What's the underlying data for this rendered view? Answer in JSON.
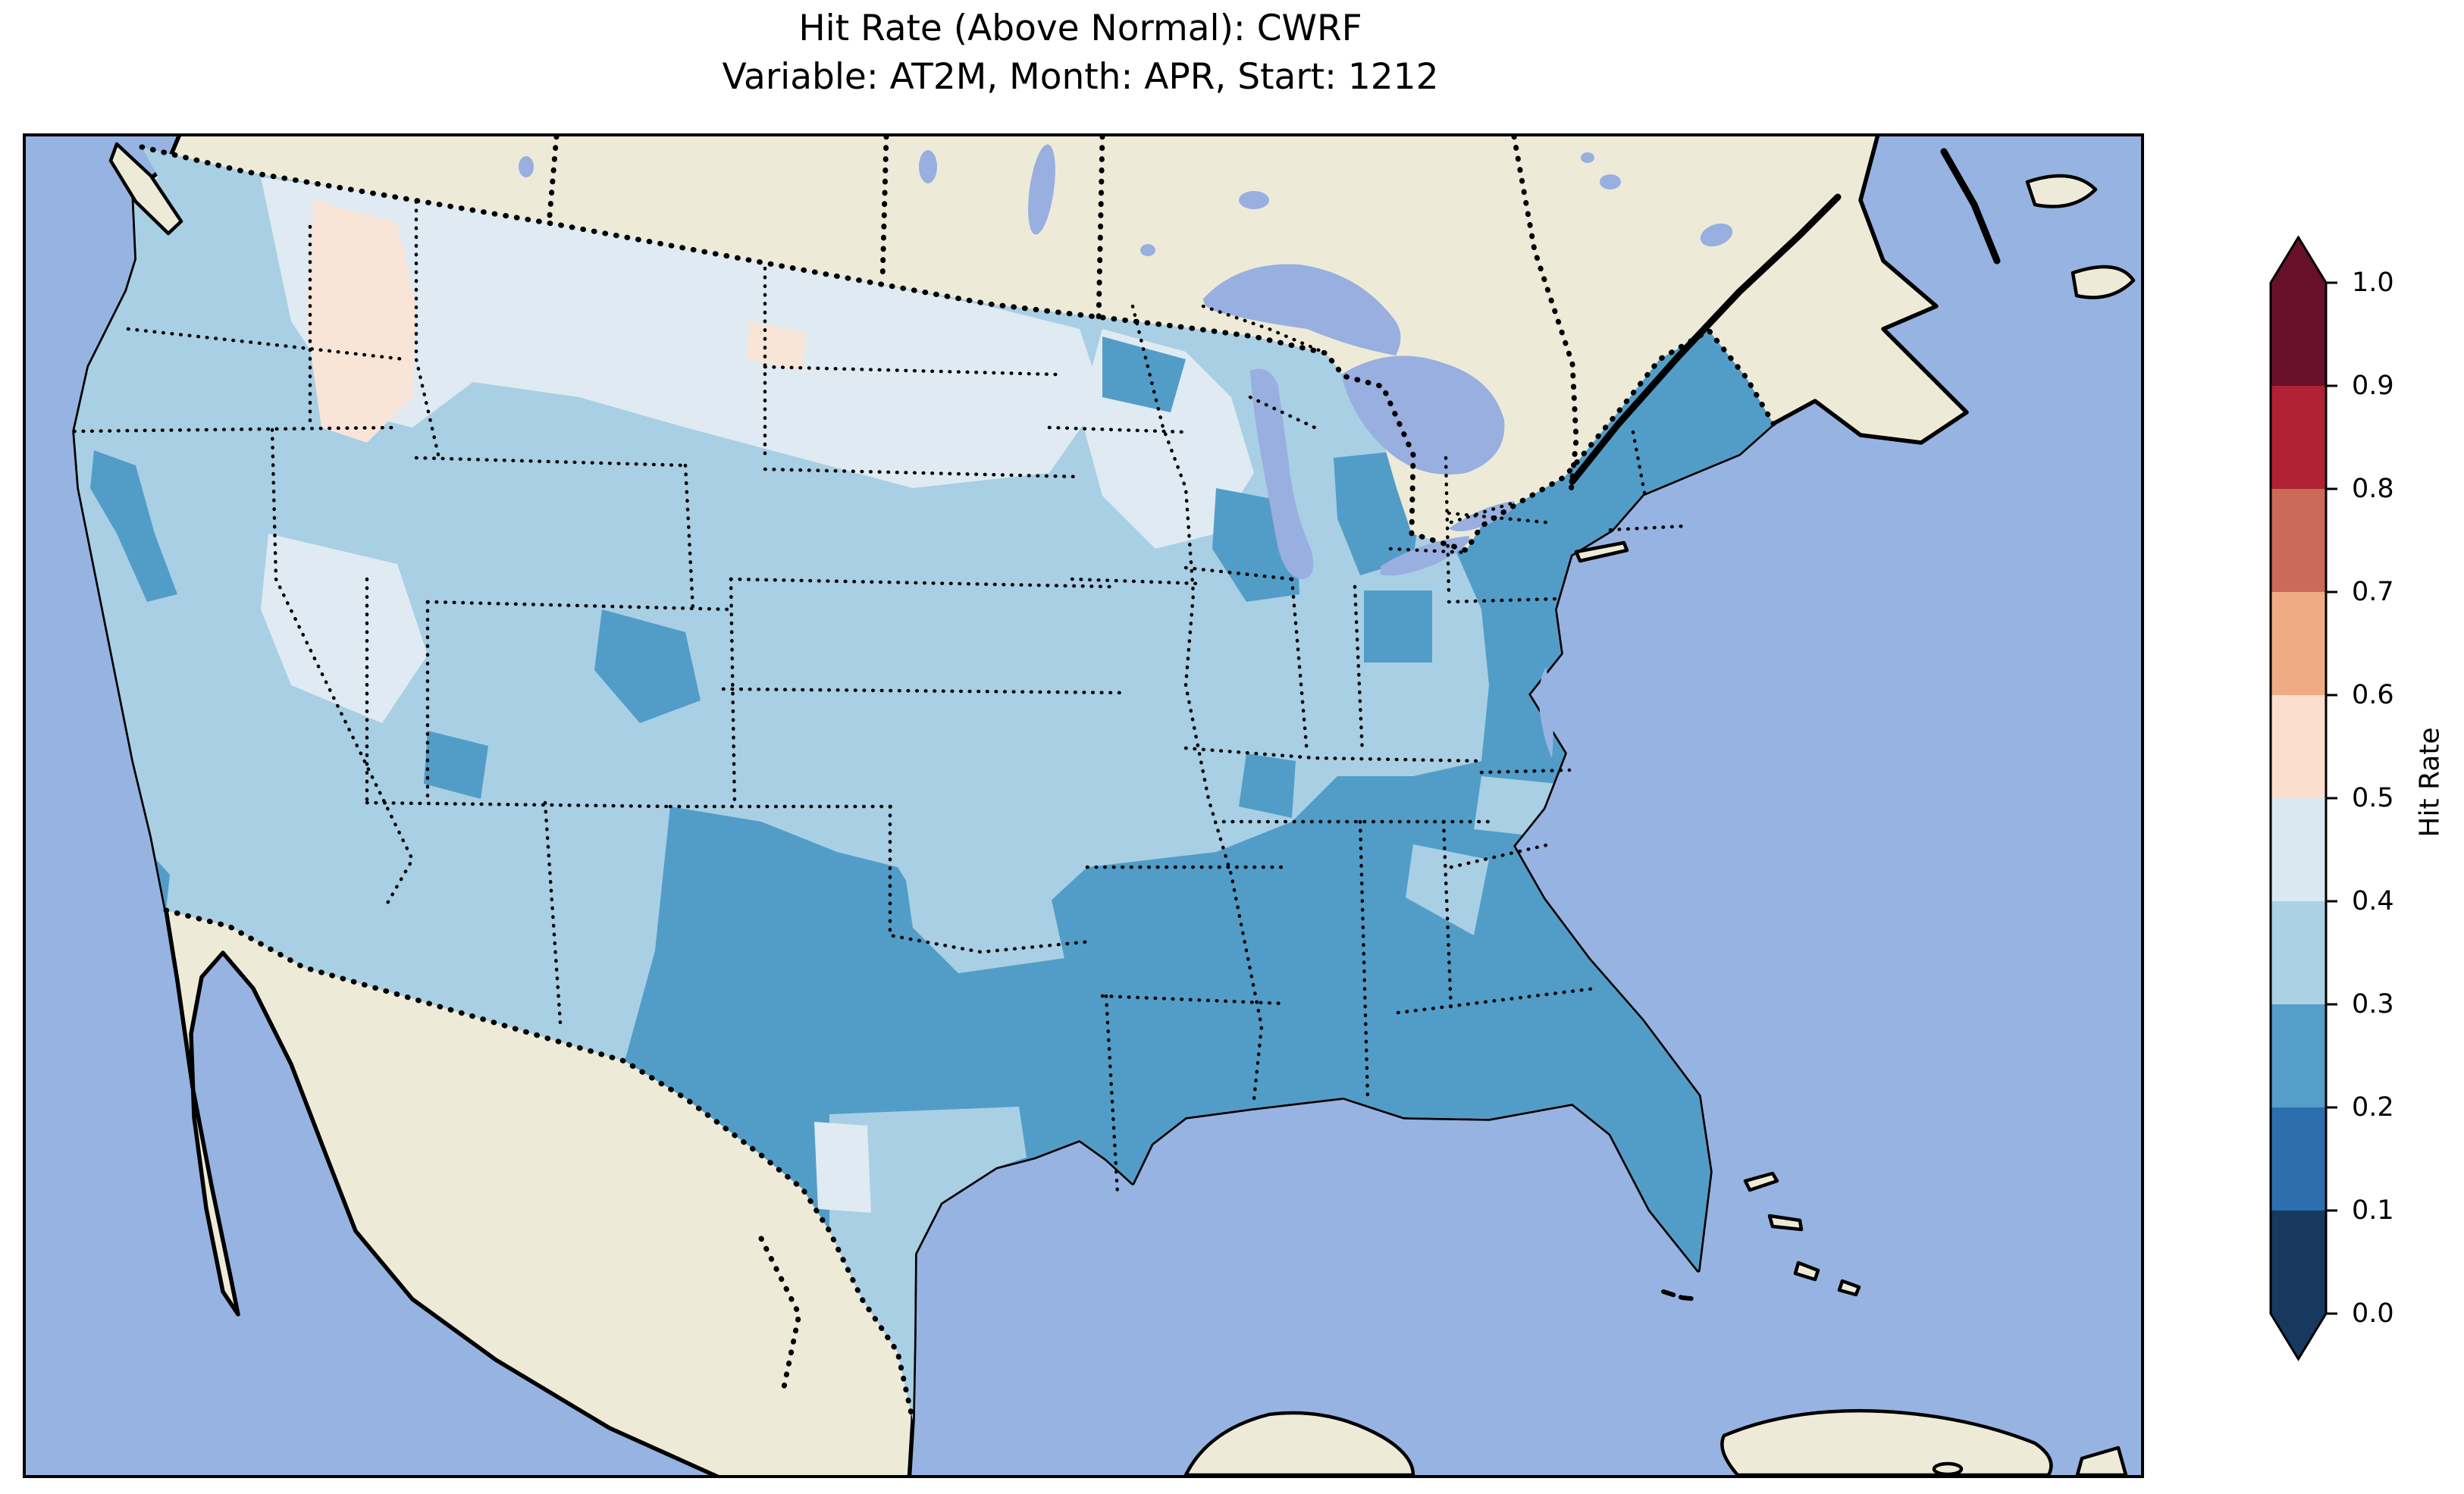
{
  "figure": {
    "title": "Hit Rate (Above Normal): CWRF",
    "subtitle": "Variable: AT2M, Month: APR, Start: 1212"
  },
  "colorbar": {
    "label": "Hit Rate",
    "extend": "both",
    "tick_labels": [
      "1.0",
      "0.9",
      "0.8",
      "0.7",
      "0.6",
      "0.5",
      "0.4",
      "0.3",
      "0.2",
      "0.1",
      "0.0"
    ],
    "levels_top_to_bottom": [
      {
        "range": "0.9–1.0",
        "color": "#68102a"
      },
      {
        "range": "0.8–0.9",
        "color": "#b02133"
      },
      {
        "range": "0.7–0.8",
        "color": "#cb6a58"
      },
      {
        "range": "0.6–0.7",
        "color": "#f1ab84"
      },
      {
        "range": "0.5–0.6",
        "color": "#fbdecd"
      },
      {
        "range": "0.4–0.5",
        "color": "#d9e8f1"
      },
      {
        "range": "0.3–0.4",
        "color": "#abd1e5"
      },
      {
        "range": "0.2–0.3",
        "color": "#549ec9"
      },
      {
        "range": "0.1–0.2",
        "color": "#2d6eae"
      },
      {
        "range": "0.0–0.1",
        "color": "#17395f"
      }
    ]
  },
  "map": {
    "colors": {
      "ocean": "#97b3e1",
      "land": "#edebd8",
      "lake": "#99afe0",
      "bin02": "#529dc8",
      "bin03": "#a8cfe4",
      "bin04": "#dfeaf2",
      "bin05": "#f9e4d8"
    },
    "features": [
      "coastlines (solid)",
      "national borders (bold dotted)",
      "US state borders (dotted)",
      "Great Lakes",
      "Gulf of Mexico",
      "Caribbean islands"
    ]
  },
  "chart_data": {
    "type": "heatmap",
    "title": "Hit Rate (Above Normal): CWRF",
    "subtitle": "Variable: AT2M, Month: APR, Start: 1212",
    "model": "CWRF",
    "metric": "Hit Rate (Above Normal)",
    "variable": "AT2M",
    "month": "APR",
    "start": "1212",
    "colorbar_label": "Hit Rate",
    "value_range": [
      0.0,
      1.0
    ],
    "bin_width": 0.1,
    "scale_ticks": [
      0.0,
      0.1,
      0.2,
      0.3,
      0.4,
      0.5,
      0.6,
      0.7,
      0.8,
      0.9,
      1.0
    ],
    "colormap": "RdBu_r, 10 discrete bins, extend both",
    "domain": "Contiguous United States (gridded ~0.5° cells)",
    "region_values_estimated": [
      {
        "region": "Pacific Northwest (WA/OR) and most of California",
        "hit_rate": "0.3–0.4"
      },
      {
        "region": "Northern California / San Diego coastal cells",
        "hit_rate": "0.2–0.3"
      },
      {
        "region": "Idaho / western Montana patch",
        "hit_rate": "0.5–0.6"
      },
      {
        "region": "Small cell eastern Montana–North Dakota border",
        "hit_rate": "0.5–0.6"
      },
      {
        "region": "Northern Plains (MT, ND, SD, western MN, WI)",
        "hit_rate": "0.4–0.5"
      },
      {
        "region": "Great Basin (NV/UT)",
        "hit_rate": "0.4–0.5"
      },
      {
        "region": "Central Plains and Midwest (KS, NE, IA, MO, IL)",
        "hit_rate": "0.3–0.4"
      },
      {
        "region": "Ohio Valley corridor (IN, OH, KY, WV) – with dark patch in central OH",
        "hit_rate": "0.3–0.4 (patch 0.2–0.3)"
      },
      {
        "region": "Central Colorado patch",
        "hit_rate": "0.2–0.3"
      },
      {
        "region": "New Mexico, Texas Panhandle, most of Texas, southern OK",
        "hit_rate": "0.2–0.3"
      },
      {
        "region": "Central/south Texas pocket",
        "hit_rate": "0.3–0.5"
      },
      {
        "region": "Gulf Coast & Southeast (AR, LA, MS, AL, GA, FL)",
        "hit_rate": "0.2–0.3"
      },
      {
        "region": "Inland SC/GA and middle TN pockets",
        "hit_rate": "0.3–0.4"
      },
      {
        "region": "East Coast & Northeast (VA, MD, PA, NY, New England)",
        "hit_rate": "0.2–0.3"
      },
      {
        "region": "Eastern Wisconsin / lower Michigan band",
        "hit_rate": "0.2–0.3"
      }
    ],
    "layout": {
      "colorbar_position": "right",
      "basemap": "Lambert-conformal style CONUS with Canada/Mexico in beige"
    }
  }
}
